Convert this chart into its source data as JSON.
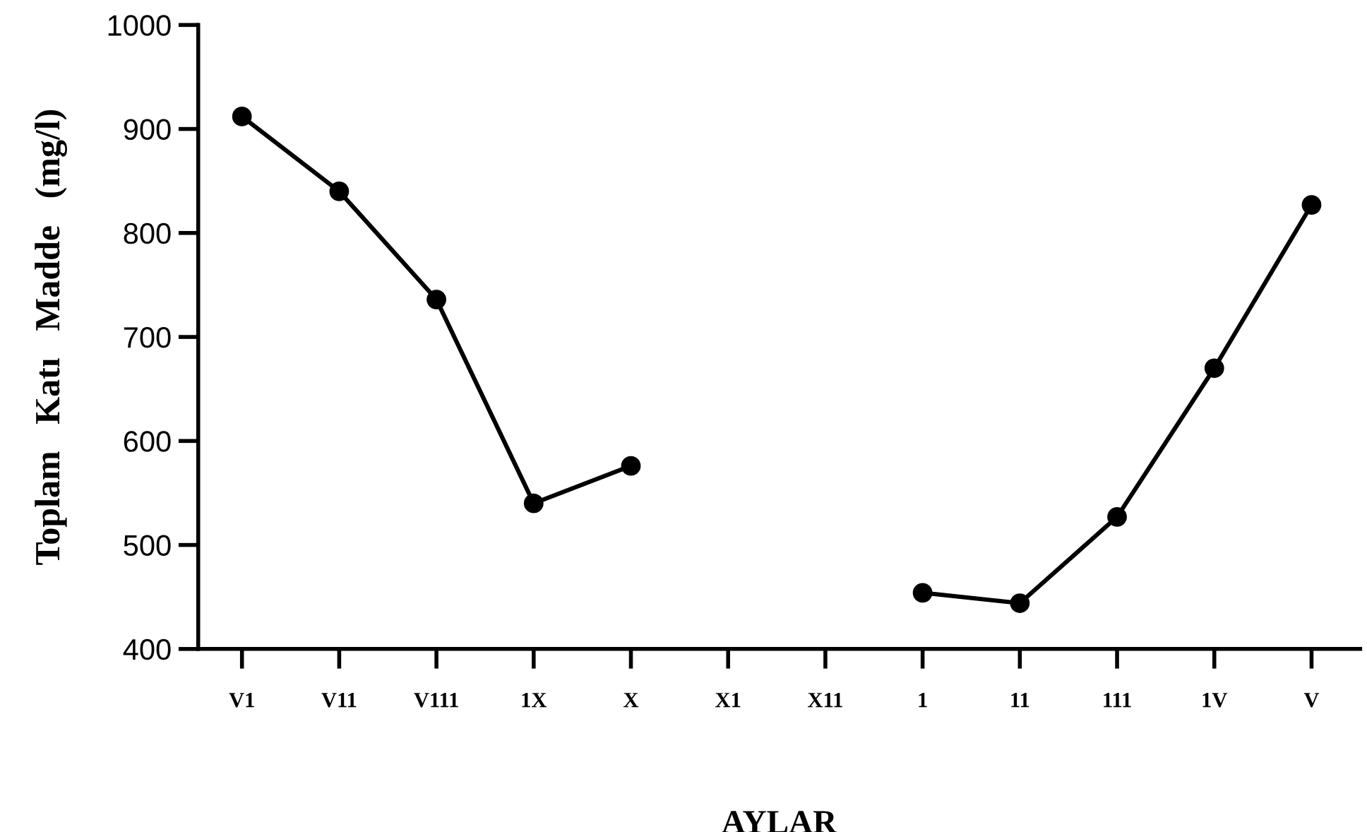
{
  "chart_data": {
    "type": "line",
    "xlabel": "AYLAR",
    "ylabel": "Toplam   Katı   Madde   (mg/l)",
    "categories": [
      "V1",
      "V11",
      "V111",
      "1X",
      "X",
      "X1",
      "X11",
      "1",
      "11",
      "111",
      "1V",
      "V"
    ],
    "series": [
      {
        "color": "#000000",
        "values": [
          912,
          840,
          736,
          540,
          576,
          null,
          null,
          454,
          444,
          527,
          670,
          827
        ]
      }
    ],
    "ylim": [
      400,
      1000
    ],
    "yticks": [
      400,
      500,
      600,
      700,
      800,
      900,
      1000
    ],
    "marker": "circle",
    "line_style": "solid",
    "grid": false,
    "legend": false
  }
}
